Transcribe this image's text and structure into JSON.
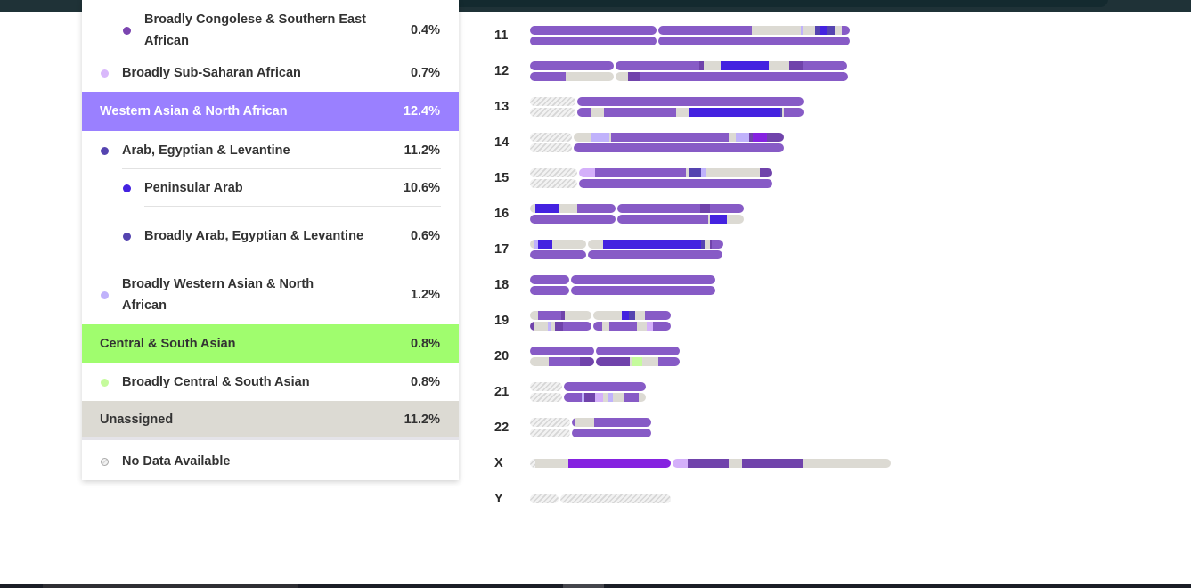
{
  "colors": {
    "P": "#875bc6",
    "D": "#7043ab",
    "B": "#4422e0",
    "N": "#5544b0",
    "L": "#c0b2fb",
    "Q": "#d4b0fa",
    "U": "#dcdad3",
    "G": "#c5fb9c",
    "V": "#8522e0",
    "H": "hatch"
  },
  "legend": [
    {
      "label": "Broadly Congolese & Southern East African",
      "pct": "0.4%",
      "level": 2,
      "color": "#7b45b0"
    },
    {
      "label": "Broadly Sub-Saharan African",
      "pct": "0.7%",
      "level": 1,
      "color": "#d9b8fb"
    },
    {
      "label": "Western Asian & North African",
      "pct": "12.4%",
      "header": true,
      "bg": "#9a80ff",
      "fg": "#ffffff"
    },
    {
      "label": "Arab, Egyptian & Levantine",
      "pct": "11.2%",
      "level": 1,
      "color": "#5544b0"
    },
    {
      "label": "Peninsular Arab",
      "pct": "10.6%",
      "level": 2,
      "color": "#4422e0"
    },
    {
      "label": "Broadly Arab, Egyptian & Levantine",
      "pct": "0.6%",
      "level": 2,
      "color": "#5544b0"
    },
    {
      "label": "Broadly Western Asian & North African",
      "pct": "1.2%",
      "level": 1,
      "color": "#c0b2fb"
    },
    {
      "label": "Central & South Asian",
      "pct": "0.8%",
      "header": true,
      "bg": "#a0fd6e",
      "fg": "#333333"
    },
    {
      "label": "Broadly Central & South Asian",
      "pct": "0.8%",
      "level": 1,
      "color": "#c5fb9c"
    },
    {
      "label": "Unassigned",
      "pct": "11.2%",
      "header": true,
      "bg": "#dcdad3",
      "fg": "#333333"
    },
    {
      "label": "No Data Available",
      "pct": "",
      "level": 1,
      "color": "hatch"
    }
  ],
  "chart_data": {
    "type": "chromosome-painting",
    "length_units": "relative",
    "chromosomes": [
      {
        "name": "11",
        "copies": [
          [
            [
              "P",
              142
            ]
          ],
          [
            [
              "P",
              105
            ],
            [
              "U",
              55
            ],
            [
              "L",
              2
            ],
            [
              "U",
              14
            ],
            [
              "N",
              6
            ],
            [
              "B",
              7
            ],
            [
              "N",
              9
            ],
            [
              "U",
              8
            ],
            [
              "P",
              9
            ]
          ]
        ],
        "copies2": [
          [
            [
              "P",
              142
            ]
          ],
          [
            [
              "P",
              215
            ]
          ]
        ]
      },
      {
        "name": "12",
        "copies": [
          [
            [
              "P",
              94
            ]
          ],
          [
            [
              "P",
              94
            ],
            [
              "D",
              5
            ],
            [
              "U",
              19
            ],
            [
              "B",
              54
            ],
            [
              "U",
              23
            ],
            [
              "D",
              15
            ],
            [
              "P",
              50
            ]
          ]
        ],
        "copies2": [
          [
            [
              "P",
              40
            ],
            [
              "U",
              54
            ]
          ],
          [
            [
              "U",
              14
            ],
            [
              "D",
              13
            ],
            [
              "P",
              234
            ]
          ]
        ]
      },
      {
        "name": "13",
        "copies": [
          [
            [
              "H",
              51
            ]
          ],
          [
            [
              "P",
              254
            ]
          ]
        ],
        "copies2": [
          [
            [
              "H",
              51
            ]
          ],
          [
            [
              "P",
              16
            ],
            [
              "U",
              14
            ],
            [
              "P",
              81
            ],
            [
              "U",
              15
            ],
            [
              "B",
              102
            ],
            [
              "N",
              2
            ],
            [
              "U",
              2
            ],
            [
              "P",
              22
            ]
          ]
        ]
      },
      {
        "name": "14",
        "copies": [
          [
            [
              "H",
              47
            ]
          ],
          [
            [
              "U",
              19
            ],
            [
              "L",
              21
            ],
            [
              "U",
              2
            ],
            [
              "P",
              132
            ],
            [
              "U",
              8
            ],
            [
              "L",
              15
            ],
            [
              "D",
              4
            ],
            [
              "V",
              16
            ],
            [
              "D",
              19
            ]
          ]
        ],
        "copies2": [
          [
            [
              "H",
              47
            ]
          ],
          [
            [
              "P",
              236
            ]
          ]
        ]
      },
      {
        "name": "15",
        "copies": [
          [
            [
              "H",
              53
            ]
          ],
          [
            [
              "Q",
              18
            ],
            [
              "P",
              102
            ],
            [
              "U",
              3
            ],
            [
              "N",
              14
            ],
            [
              "L",
              5
            ],
            [
              "U",
              61
            ],
            [
              "D",
              14
            ]
          ]
        ],
        "copies2": [
          [
            [
              "H",
              53
            ]
          ],
          [
            [
              "P",
              217
            ]
          ]
        ]
      },
      {
        "name": "16",
        "copies": [
          [
            [
              "U",
              6
            ],
            [
              "B",
              27
            ],
            [
              "U",
              20
            ],
            [
              "P",
              43
            ]
          ],
          [
            [
              "P",
              93
            ],
            [
              "D",
              11
            ],
            [
              "P",
              38
            ]
          ]
        ],
        "copies2": [
          [
            [
              "P",
              96
            ]
          ],
          [
            [
              "P",
              102
            ],
            [
              "U",
              2
            ],
            [
              "B",
              19
            ],
            [
              "U",
              19
            ]
          ]
        ]
      },
      {
        "name": "17",
        "copies": [
          [
            [
              "U",
              5
            ],
            [
              "L",
              4
            ],
            [
              "B",
              16
            ],
            [
              "U",
              38
            ]
          ],
          [
            [
              "U",
              17
            ],
            [
              "B",
              110
            ],
            [
              "N",
              4
            ],
            [
              "U",
              6
            ],
            [
              "D",
              2
            ],
            [
              "P",
              13
            ]
          ]
        ],
        "copies2": [
          [
            [
              "P",
              63
            ]
          ],
          [
            [
              "P",
              151
            ]
          ]
        ]
      },
      {
        "name": "18",
        "copies": [
          [
            [
              "P",
              44
            ]
          ],
          [
            [
              "P",
              162
            ]
          ]
        ],
        "copies2": [
          [
            [
              "P",
              44
            ]
          ],
          [
            [
              "P",
              162
            ]
          ]
        ]
      },
      {
        "name": "19",
        "copies": [
          [
            [
              "U",
              9
            ],
            [
              "P",
              26
            ],
            [
              "D",
              4
            ],
            [
              "U",
              30
            ]
          ],
          [
            [
              "U",
              32
            ],
            [
              "B",
              8
            ],
            [
              "N",
              7
            ],
            [
              "U",
              11
            ],
            [
              "P",
              29
            ]
          ]
        ],
        "copies2": [
          [
            [
              "D",
              4
            ],
            [
              "U",
              16
            ],
            [
              "L",
              4
            ],
            [
              "U",
              4
            ],
            [
              "D",
              9
            ],
            [
              "P",
              32
            ]
          ],
          [
            [
              "P",
              10
            ],
            [
              "U",
              8
            ],
            [
              "P",
              31
            ],
            [
              "U",
              11
            ],
            [
              "Q",
              7
            ],
            [
              "P",
              20
            ]
          ]
        ]
      },
      {
        "name": "20",
        "copies": [
          [
            [
              "P",
              72
            ]
          ],
          [
            [
              "P",
              94
            ]
          ]
        ],
        "copies2": [
          [
            [
              "U",
              21
            ],
            [
              "P",
              35
            ],
            [
              "D",
              16
            ]
          ],
          [
            [
              "D",
              38
            ],
            [
              "U",
              3
            ],
            [
              "G",
              11
            ],
            [
              "U",
              18
            ],
            [
              "P",
              24
            ]
          ]
        ]
      },
      {
        "name": "21",
        "copies": [
          [
            [
              "H",
              36
            ]
          ],
          [
            [
              "P",
              92
            ]
          ]
        ],
        "copies2": [
          [
            [
              "H",
              36
            ]
          ],
          [
            [
              "P",
              20
            ],
            [
              "L",
              3
            ],
            [
              "D",
              12
            ],
            [
              "Q",
              9
            ],
            [
              "U",
              6
            ],
            [
              "L",
              5
            ],
            [
              "U",
              13
            ],
            [
              "P",
              16
            ],
            [
              "U",
              8
            ]
          ]
        ]
      },
      {
        "name": "22",
        "copies": [
          [
            [
              "H",
              45
            ]
          ],
          [
            [
              "P",
              4
            ],
            [
              "U",
              21
            ],
            [
              "P",
              64
            ]
          ]
        ],
        "copies2": [
          [
            [
              "H",
              45
            ]
          ],
          [
            [
              "P",
              89
            ]
          ]
        ]
      },
      {
        "name": "X",
        "copies": [
          [
            [
              "H",
              6
            ],
            [
              "U",
              37
            ],
            [
              "V",
              115
            ]
          ],
          [
            [
              "Q",
              17
            ],
            [
              "D",
              46
            ],
            [
              "U",
              15
            ],
            [
              "D",
              68
            ],
            [
              "U",
              99
            ]
          ]
        ]
      },
      {
        "name": "Y",
        "copies": [
          [
            [
              "H",
              32
            ]
          ],
          [
            [
              "H",
              124
            ]
          ]
        ]
      }
    ]
  }
}
